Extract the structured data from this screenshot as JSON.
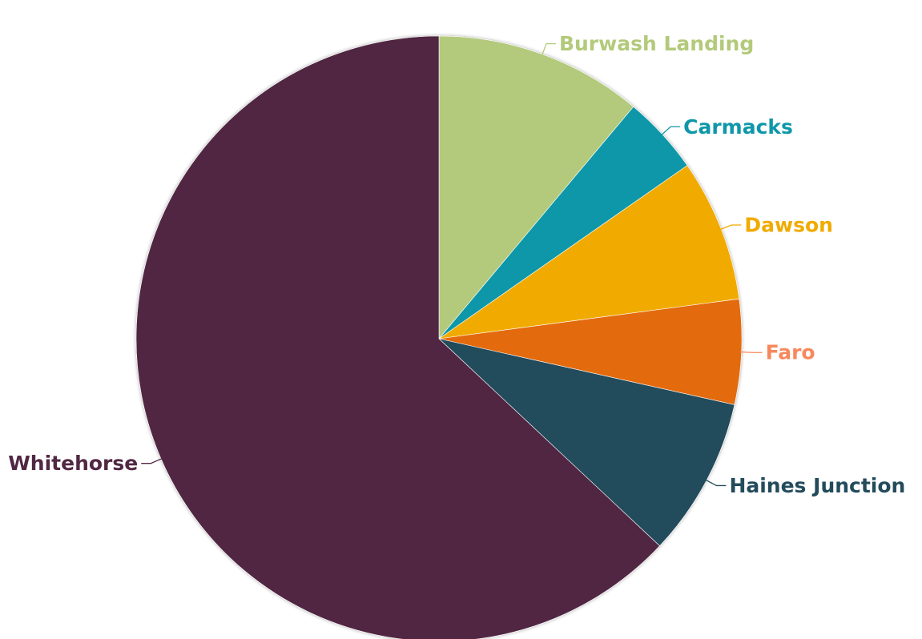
{
  "chart_data": {
    "type": "pie",
    "start_angle_deg": 0,
    "direction": "clockwise",
    "slices": [
      {
        "label": "Burwash Landing",
        "value": 11.1,
        "color": "#b3ca7b",
        "label_color": "#b3ca7b"
      },
      {
        "label": "Carmacks",
        "value": 4.2,
        "color": "#0e97a9",
        "label_color": "#0e97a9"
      },
      {
        "label": "Dawson",
        "value": 7.6,
        "color": "#f1ab00",
        "label_color": "#f1ab00"
      },
      {
        "label": "Faro",
        "value": 5.6,
        "color": "#e36a0c",
        "label_color": "#f7885c"
      },
      {
        "label": "Haines Junction",
        "value": 8.5,
        "color": "#234b5b",
        "label_color": "#234b5b"
      },
      {
        "label": "Whitehorse",
        "value": 63.0,
        "color": "#512843",
        "label_color": "#512843"
      }
    ]
  }
}
